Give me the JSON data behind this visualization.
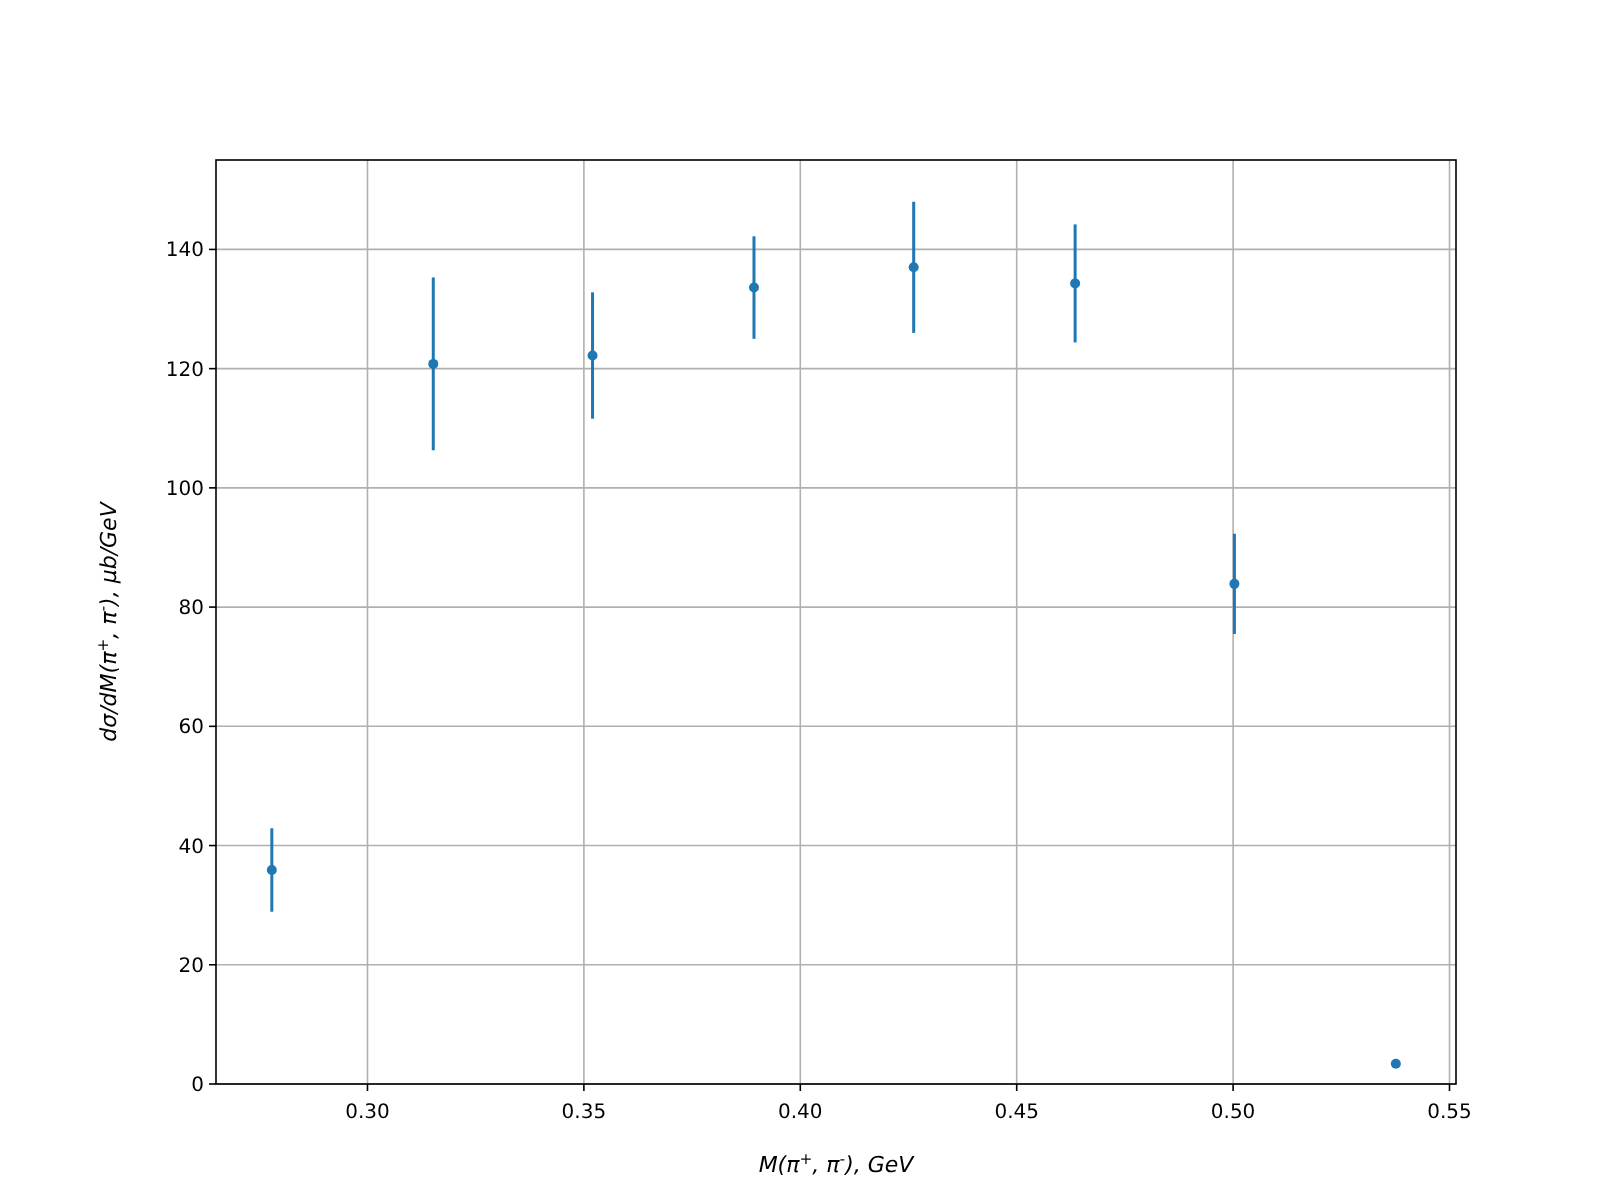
{
  "chart_data": {
    "type": "scatter",
    "xlabel": "M(π$^{+}$, π$^{-}$), GeV",
    "ylabel": "dσ/dM(π$^{+}$, π$^{-}$), μb/GeV",
    "x": [
      0.2779,
      0.3152,
      0.352,
      0.3893,
      0.4262,
      0.4635,
      0.5003,
      0.5376
    ],
    "series": [
      {
        "color": "#1f77b4",
        "values": [
          35.9,
          120.8,
          122.2,
          133.6,
          137,
          134.3,
          83.9,
          3.4
        ],
        "errors": [
          7,
          14.5,
          10.6,
          8.6,
          11,
          9.9,
          8.4,
          0.5
        ]
      }
    ],
    "xlim": [
      0.265,
      0.5515
    ],
    "ylim": [
      0,
      155
    ],
    "xticks": [
      {
        "value": 0.3,
        "label": "0.30"
      },
      {
        "value": 0.35,
        "label": "0.35"
      },
      {
        "value": 0.4,
        "label": "0.40"
      },
      {
        "value": 0.45,
        "label": "0.45"
      },
      {
        "value": 0.5,
        "label": "0.50"
      },
      {
        "value": 0.55,
        "label": "0.55"
      }
    ],
    "yticks": [
      0,
      20,
      40,
      60,
      80,
      100,
      120,
      140
    ],
    "grid": true,
    "marker": "circle"
  }
}
